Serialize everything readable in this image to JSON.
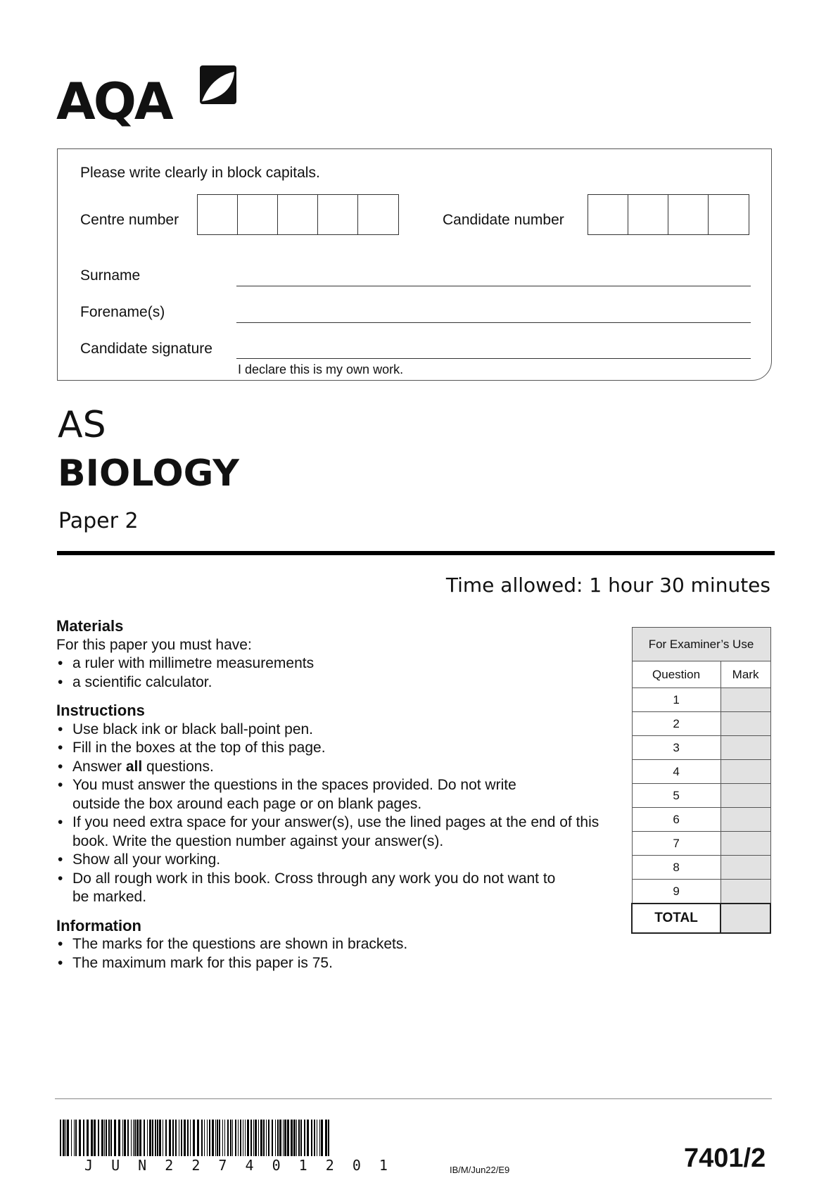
{
  "logo": {
    "text": "AQA"
  },
  "form": {
    "instruction": "Please write clearly in block capitals.",
    "centre_number_label": "Centre number",
    "candidate_number_label": "Candidate number",
    "surname_label": "Surname",
    "forename_label": "Forename(s)",
    "signature_label": "Candidate signature",
    "declaration": "I declare this is my own work."
  },
  "paper": {
    "level": "AS",
    "subject": "BIOLOGY",
    "paper": "Paper 2",
    "time_allowed": "Time allowed: 1 hour 30 minutes"
  },
  "materials": {
    "heading": "Materials",
    "intro": "For this paper you must have:",
    "items": [
      "a ruler with millimetre measurements",
      "a scientific calculator."
    ]
  },
  "instructions": {
    "heading": "Instructions",
    "items": [
      "Use black ink or black ball-point pen.",
      "Fill in the boxes at the top of this page.",
      "Answer <b>all</b> questions.",
      "You must answer the questions in the spaces provided.  Do not write outside the box around each page or on blank pages.",
      "If you need extra space for your answer(s), use the lined pages at the end of this book.  Write the question number against your answer(s).",
      "Show all your working.",
      "Do all rough work in this book.  Cross through any work you do not want to be marked."
    ]
  },
  "information": {
    "heading": "Information",
    "items": [
      "The marks for the questions are shown in brackets.",
      "The maximum mark for this paper is 75."
    ]
  },
  "examiner_table": {
    "title": "For Examiner’s Use",
    "col_question": "Question",
    "col_mark": "Mark",
    "questions": [
      "1",
      "2",
      "3",
      "4",
      "5",
      "6",
      "7",
      "8",
      "9"
    ],
    "total_label": "TOTAL"
  },
  "footer": {
    "barcode_text": "J U N 2 2 7 4 0 1 2 0 1",
    "ref": "IB/M/Jun22/E9",
    "paper_code": "7401/2"
  }
}
